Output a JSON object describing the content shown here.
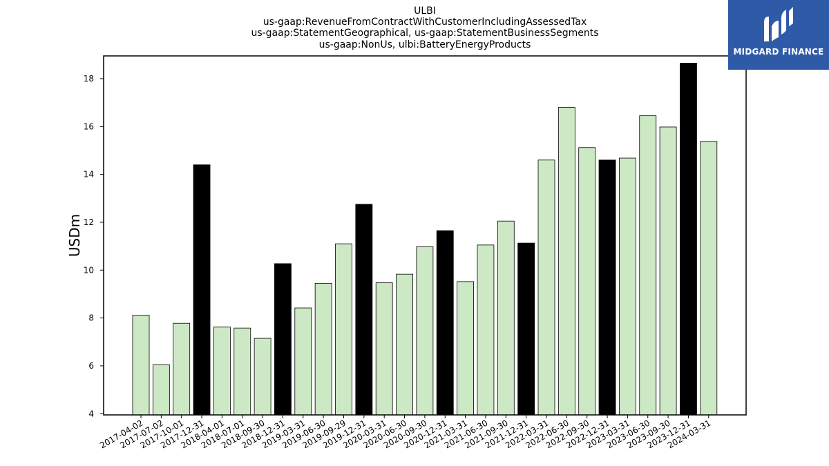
{
  "chart_data": {
    "type": "bar",
    "title_lines": [
      "ULBI",
      "us-gaap:RevenueFromContractWithCustomerIncludingAssessedTax",
      "us-gaap:StatementGeographical, us-gaap:StatementBusinessSegments",
      "us-gaap:NonUs, ulbi:BatteryEnergyProducts"
    ],
    "xlabel": "",
    "ylabel": "USDm",
    "ylim": [
      3.95,
      18.95
    ],
    "yticks": [
      4,
      6,
      8,
      10,
      12,
      14,
      16,
      18
    ],
    "categories": [
      "2017-04-02",
      "2017-07-02",
      "2017-10-01",
      "2017-12-31",
      "2018-04-01",
      "2018-07-01",
      "2018-09-30",
      "2018-12-31",
      "2019-03-31",
      "2019-06-30",
      "2019-09-29",
      "2019-12-31",
      "2020-03-31",
      "2020-06-30",
      "2020-09-30",
      "2020-12-31",
      "2021-03-31",
      "2021-06-30",
      "2021-09-30",
      "2021-12-31",
      "2022-03-31",
      "2022-06-30",
      "2022-09-30",
      "2022-12-31",
      "2023-03-31",
      "2023-06-30",
      "2023-09-30",
      "2023-12-31",
      "2024-03-31"
    ],
    "values": [
      8.12,
      6.05,
      7.78,
      14.4,
      7.62,
      7.58,
      7.15,
      10.27,
      8.42,
      9.45,
      11.1,
      12.75,
      9.47,
      9.83,
      10.98,
      11.65,
      9.52,
      11.05,
      12.05,
      11.13,
      14.6,
      16.8,
      15.12,
      14.6,
      14.68,
      16.45,
      15.98,
      18.65,
      15.38
    ],
    "q4_highlight": [
      false,
      false,
      false,
      true,
      false,
      false,
      false,
      true,
      false,
      false,
      false,
      true,
      false,
      false,
      false,
      true,
      false,
      false,
      false,
      true,
      false,
      false,
      false,
      true,
      false,
      false,
      false,
      true,
      false
    ],
    "colors": {
      "bar": "#cce8c4",
      "highlight": "#000000",
      "edge": "#000000"
    },
    "grid": false,
    "legend": "none"
  },
  "logo": {
    "text": "MIDGARD FINANCE"
  }
}
